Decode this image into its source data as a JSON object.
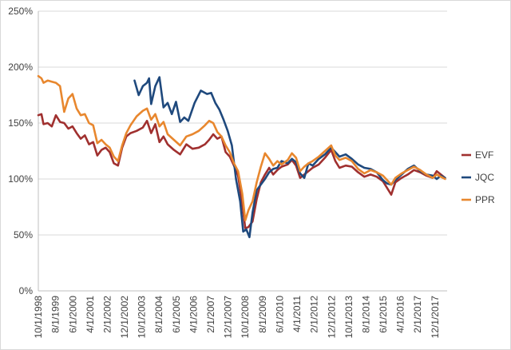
{
  "chart_data": {
    "type": "line",
    "title": "",
    "xlabel": "",
    "ylabel": "",
    "ylim": [
      0,
      250
    ],
    "y_ticks": [
      "0%",
      "50%",
      "100%",
      "150%",
      "200%",
      "250%"
    ],
    "y_tick_values": [
      0,
      50,
      100,
      150,
      200,
      250
    ],
    "x_tick_labels": [
      "10/1/1998",
      "8/1/1999",
      "6/1/2000",
      "4/1/2001",
      "2/1/2002",
      "12/1/2002",
      "10/1/2003",
      "8/1/2004",
      "6/1/2005",
      "4/1/2006",
      "2/1/2007",
      "12/1/2007",
      "10/1/2008",
      "8/1/2009",
      "6/1/2010",
      "4/1/2011",
      "2/1/2012",
      "12/1/2012",
      "10/1/2013",
      "8/1/2014",
      "6/1/2015",
      "4/1/2016",
      "2/1/2017",
      "12/1/2017"
    ],
    "x_tick_values": [
      1998.75,
      1999.58,
      2000.42,
      2001.25,
      2002.08,
      2002.92,
      2003.75,
      2004.58,
      2005.42,
      2006.25,
      2007.08,
      2007.92,
      2008.75,
      2009.58,
      2010.42,
      2011.25,
      2012.08,
      2012.92,
      2013.75,
      2014.58,
      2015.42,
      2016.25,
      2017.08,
      2017.92
    ],
    "xlim": [
      1998.75,
      2018.5
    ],
    "grid": "horizontal",
    "legend_position": "right",
    "series": [
      {
        "name": "EVF",
        "color": "#a0302f",
        "x": [
          1998.75,
          1998.9,
          1999.0,
          1999.2,
          1999.4,
          1999.6,
          1999.8,
          2000.0,
          2000.2,
          2000.4,
          2000.6,
          2000.8,
          2001.0,
          2001.2,
          2001.4,
          2001.6,
          2001.8,
          2002.0,
          2002.2,
          2002.4,
          2002.6,
          2002.8,
          2003.0,
          2003.2,
          2003.5,
          2003.8,
          2004.0,
          2004.2,
          2004.4,
          2004.6,
          2004.8,
          2005.0,
          2005.3,
          2005.6,
          2005.9,
          2006.2,
          2006.5,
          2006.8,
          2007.0,
          2007.2,
          2007.4,
          2007.6,
          2007.8,
          2008.0,
          2008.2,
          2008.4,
          2008.6,
          2008.75,
          2008.9,
          2009.1,
          2009.3,
          2009.5,
          2009.7,
          2009.9,
          2010.1,
          2010.3,
          2010.5,
          2010.8,
          2011.0,
          2011.2,
          2011.4,
          2011.6,
          2011.8,
          2012.0,
          2012.3,
          2012.6,
          2012.9,
          2013.1,
          2013.3,
          2013.6,
          2013.9,
          2014.2,
          2014.5,
          2014.8,
          2015.1,
          2015.4,
          2015.6,
          2015.8,
          2016.0,
          2016.3,
          2016.6,
          2016.9,
          2017.2,
          2017.5,
          2017.8,
          2018.0,
          2018.2,
          2018.4
        ],
        "values": [
          157,
          158,
          149,
          150,
          147,
          157,
          151,
          150,
          145,
          147,
          141,
          136,
          139,
          131,
          133,
          121,
          126,
          128,
          124,
          114,
          112,
          128,
          138,
          141,
          143,
          146,
          152,
          141,
          149,
          133,
          138,
          131,
          126,
          122,
          131,
          127,
          128,
          131,
          135,
          140,
          136,
          138,
          124,
          120,
          112,
          103,
          78,
          56,
          57,
          62,
          82,
          97,
          104,
          110,
          104,
          108,
          111,
          113,
          117,
          112,
          101,
          104,
          107,
          110,
          113,
          119,
          126,
          116,
          110,
          112,
          111,
          106,
          102,
          104,
          102,
          98,
          92,
          86,
          97,
          101,
          104,
          108,
          106,
          103,
          101,
          107,
          104,
          101
        ]
      },
      {
        "name": "JQC",
        "color": "#1f497d",
        "x": [
          2003.4,
          2003.6,
          2003.8,
          2004.0,
          2004.1,
          2004.2,
          2004.4,
          2004.6,
          2004.8,
          2005.0,
          2005.2,
          2005.4,
          2005.6,
          2005.8,
          2006.0,
          2006.3,
          2006.6,
          2006.9,
          2007.1,
          2007.3,
          2007.5,
          2007.7,
          2007.9,
          2008.1,
          2008.3,
          2008.5,
          2008.65,
          2008.8,
          2008.95,
          2009.1,
          2009.3,
          2009.5,
          2009.7,
          2009.9,
          2010.1,
          2010.3,
          2010.5,
          2010.8,
          2011.0,
          2011.2,
          2011.4,
          2011.6,
          2011.8,
          2012.0,
          2012.3,
          2012.6,
          2012.9,
          2013.1,
          2013.3,
          2013.6,
          2013.9,
          2014.2,
          2014.5,
          2014.8,
          2015.1,
          2015.4,
          2015.6,
          2015.8,
          2016.0,
          2016.3,
          2016.6,
          2016.9,
          2017.2,
          2017.5,
          2017.8,
          2018.0,
          2018.2,
          2018.4
        ],
        "values": [
          188,
          175,
          183,
          186,
          190,
          167,
          183,
          191,
          164,
          168,
          158,
          169,
          151,
          155,
          152,
          168,
          179,
          176,
          177,
          168,
          162,
          153,
          143,
          130,
          100,
          80,
          53,
          55,
          48,
          70,
          90,
          95,
          100,
          106,
          109,
          110,
          116,
          114,
          118,
          115,
          105,
          101,
          114,
          112,
          118,
          122,
          128,
          124,
          120,
          122,
          118,
          113,
          110,
          109,
          106,
          99,
          96,
          95,
          99,
          104,
          109,
          112,
          107,
          104,
          103,
          100,
          103,
          101
        ]
      },
      {
        "name": "PPR",
        "color": "#e8872e",
        "x": [
          1998.75,
          1998.9,
          1999.0,
          1999.2,
          1999.4,
          1999.6,
          1999.8,
          2000.0,
          2000.2,
          2000.4,
          2000.6,
          2000.8,
          2001.0,
          2001.2,
          2001.4,
          2001.6,
          2001.8,
          2002.0,
          2002.2,
          2002.4,
          2002.6,
          2002.8,
          2003.0,
          2003.2,
          2003.5,
          2003.8,
          2004.0,
          2004.2,
          2004.4,
          2004.6,
          2004.8,
          2005.0,
          2005.3,
          2005.6,
          2005.9,
          2006.2,
          2006.5,
          2006.8,
          2007.0,
          2007.2,
          2007.4,
          2007.6,
          2007.8,
          2008.0,
          2008.2,
          2008.4,
          2008.6,
          2008.75,
          2008.9,
          2009.1,
          2009.3,
          2009.5,
          2009.7,
          2009.9,
          2010.1,
          2010.3,
          2010.5,
          2010.8,
          2011.0,
          2011.2,
          2011.4,
          2011.6,
          2011.8,
          2012.0,
          2012.3,
          2012.6,
          2012.9,
          2013.1,
          2013.3,
          2013.6,
          2013.9,
          2014.2,
          2014.5,
          2014.8,
          2015.1,
          2015.4,
          2015.6,
          2015.8,
          2016.0,
          2016.3,
          2016.6,
          2016.9,
          2017.2,
          2017.5,
          2017.8,
          2018.0,
          2018.2,
          2018.4
        ],
        "values": [
          192,
          190,
          186,
          188,
          187,
          186,
          183,
          160,
          172,
          176,
          163,
          157,
          158,
          150,
          148,
          132,
          135,
          131,
          128,
          120,
          116,
          130,
          141,
          148,
          156,
          161,
          163,
          153,
          158,
          147,
          151,
          140,
          135,
          130,
          138,
          140,
          143,
          148,
          152,
          150,
          142,
          138,
          130,
          124,
          114,
          107,
          87,
          63,
          72,
          80,
          97,
          111,
          123,
          118,
          112,
          116,
          113,
          117,
          123,
          119,
          107,
          111,
          114,
          116,
          120,
          125,
          130,
          121,
          117,
          119,
          116,
          109,
          105,
          108,
          106,
          103,
          99,
          95,
          101,
          105,
          108,
          111,
          108,
          104,
          101,
          104,
          102,
          100
        ]
      }
    ]
  }
}
